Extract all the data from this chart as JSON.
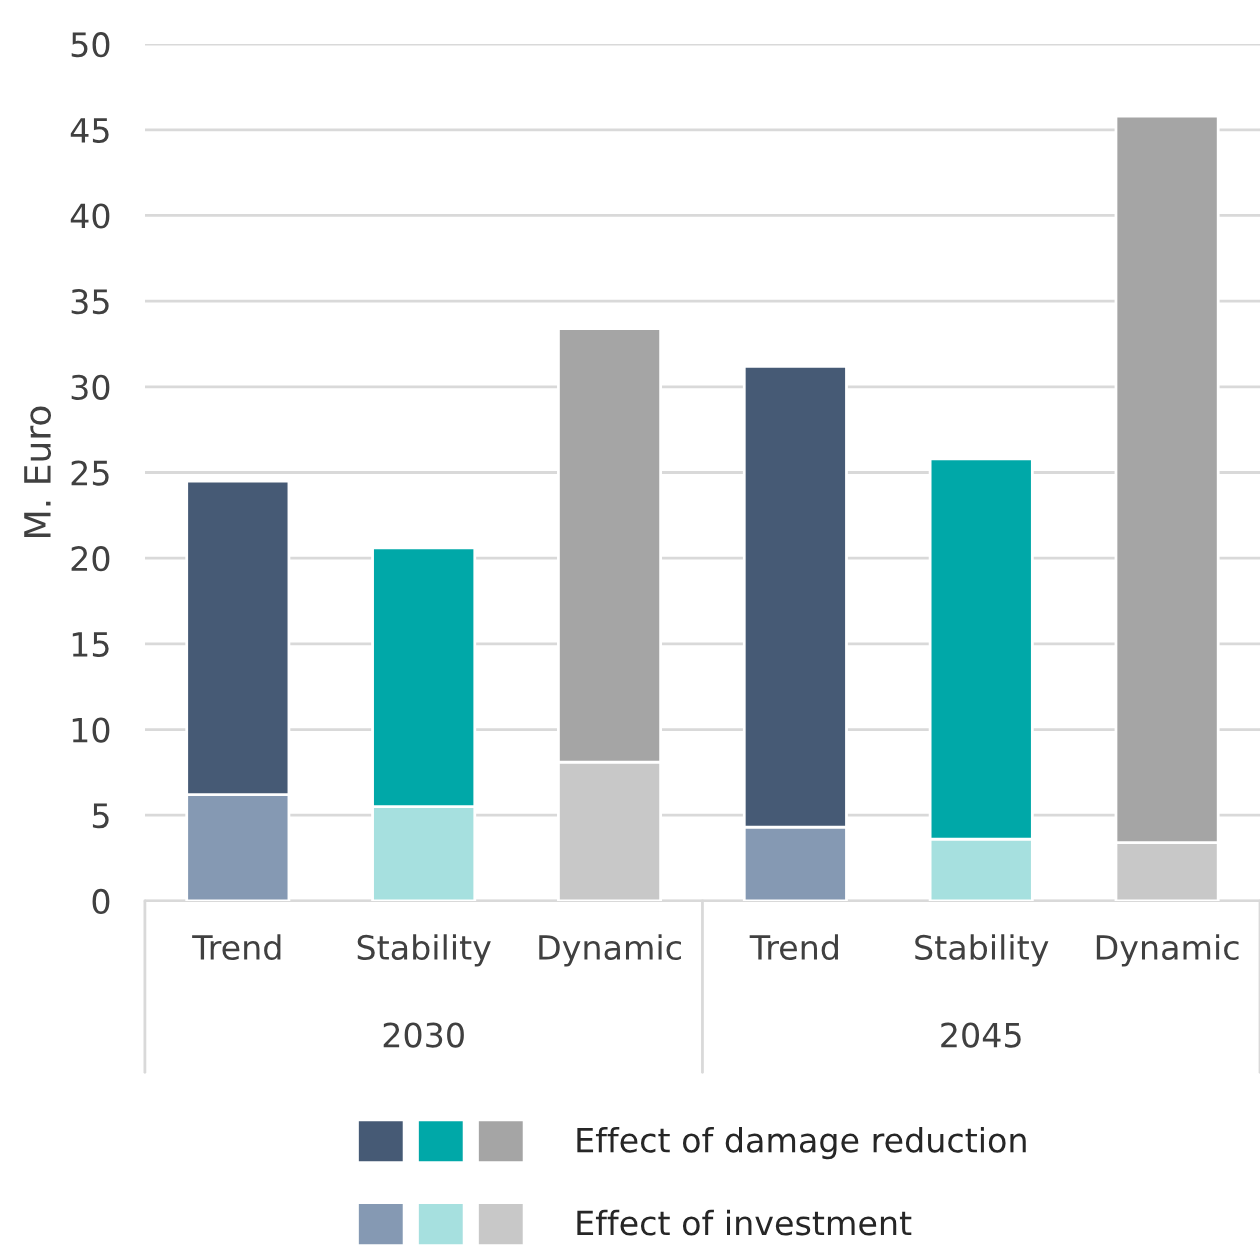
{
  "chart_data": {
    "type": "bar",
    "stacked": true,
    "ylabel": "M. Euro",
    "categories": [
      "Trend",
      "Stability",
      "Dynamic",
      "Trend",
      "Stability",
      "Dynamic"
    ],
    "series": [
      {
        "name": "Effect of investment",
        "colors": [
          "#8599b3",
          "#a6e0df",
          "#c8c8c8",
          "#8599b3",
          "#a6e0df",
          "#c8c8c8"
        ],
        "values": [
          6.2,
          5.5,
          8.1,
          4.3,
          3.6,
          3.4
        ]
      },
      {
        "name": "Effect of damage reduction",
        "colors": [
          "#465a75",
          "#00a8a8",
          "#a5a5a5",
          "#465a75",
          "#00a8a8",
          "#a5a5a5"
        ],
        "values": [
          18.3,
          15.1,
          25.3,
          26.9,
          22.2,
          42.4
        ]
      }
    ],
    "annotations": [
      "2030",
      "2045"
    ],
    "ylim": [
      0,
      50
    ],
    "yticks": [
      0,
      5,
      10,
      15,
      20,
      25,
      30,
      35,
      40,
      45,
      50
    ],
    "grid": "y",
    "legend": "bottom"
  }
}
